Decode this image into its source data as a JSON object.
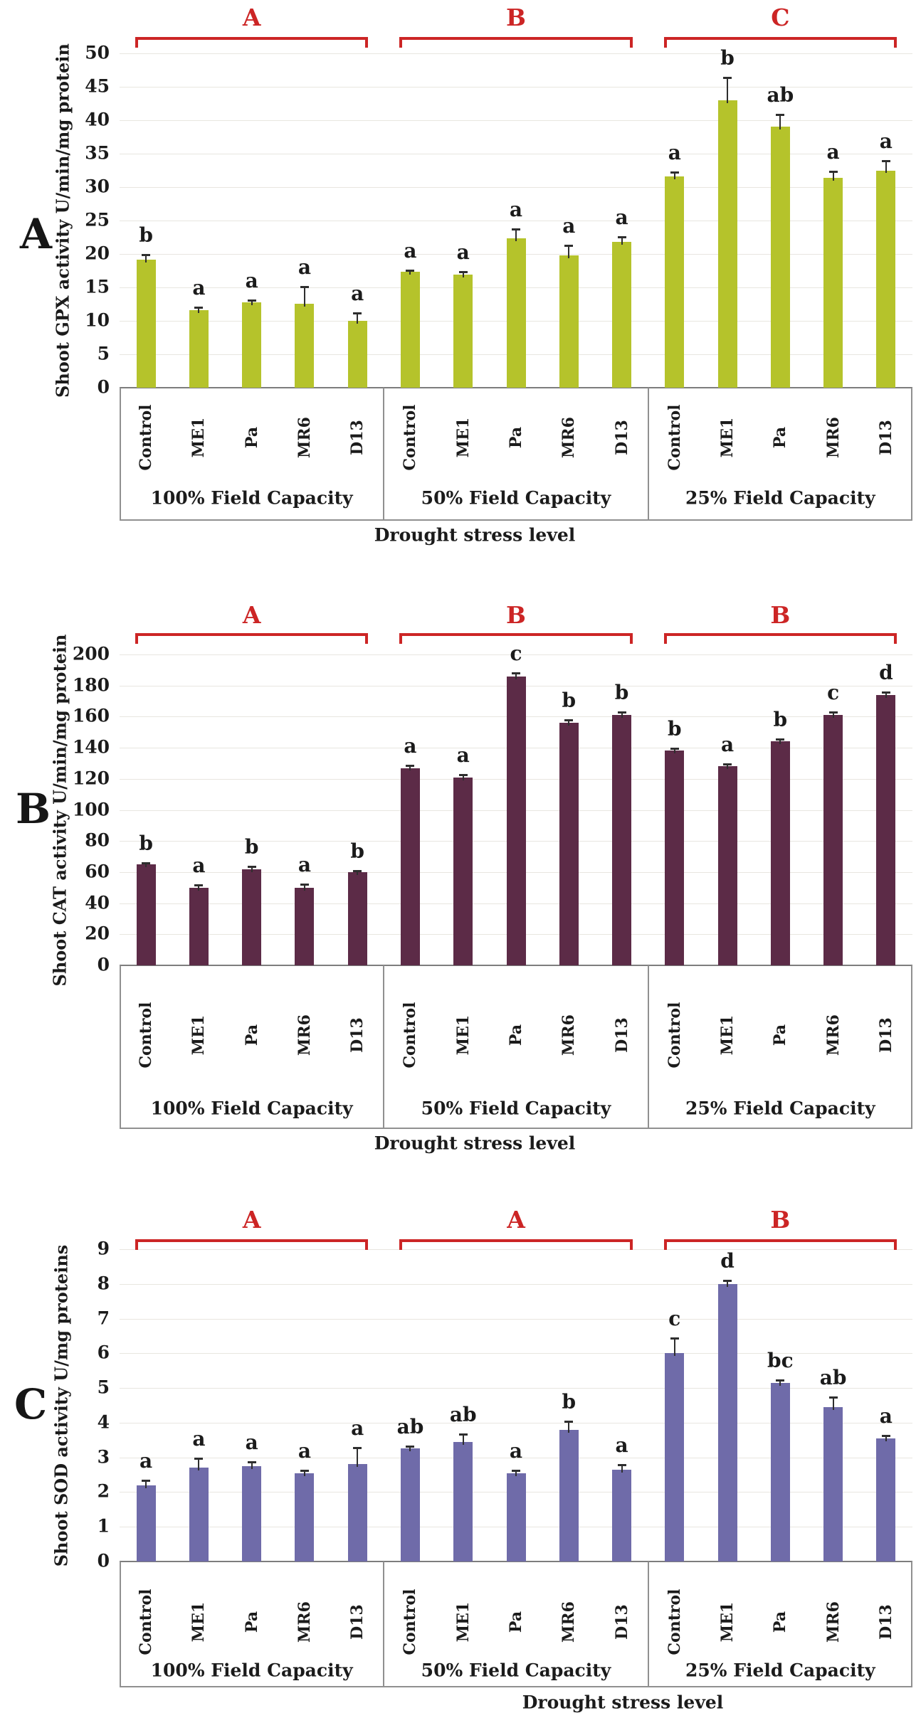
{
  "colors": {
    "bracket_red": "#cc2525",
    "error_bar": "#2e2e2e",
    "text": "#1b1b1b"
  },
  "x_axis_title": "Drought stress level",
  "treatments": [
    "Control",
    "ME1",
    "Pa",
    "MR6",
    "D13"
  ],
  "chart_data": [
    {
      "type": "bar",
      "panel_letter": "A",
      "ylabel": "Shoot GPX activity U/min/mg protein",
      "xlabel": "Drought stress level",
      "ylim": [
        0,
        50
      ],
      "ytick_step": 5,
      "bar_color": "#b5c32b",
      "categories": [
        "Control",
        "ME1",
        "Pa",
        "MR6",
        "D13"
      ],
      "groups": [
        {
          "label": "100% Field Capacity",
          "bracket_letter": "A",
          "values": [
            19.2,
            11.6,
            12.8,
            12.6,
            10.0
          ],
          "errors": [
            0.8,
            0.5,
            0.4,
            2.6,
            1.3
          ],
          "sig_letters": [
            "b",
            "a",
            "a",
            "a",
            "a"
          ]
        },
        {
          "label": "50% Field Capacity",
          "bracket_letter": "B",
          "values": [
            17.3,
            16.9,
            22.3,
            19.8,
            21.8
          ],
          "errors": [
            0.4,
            0.5,
            1.5,
            1.6,
            0.9
          ],
          "sig_letters": [
            "a",
            "a",
            "a",
            "a",
            "a"
          ]
        },
        {
          "label": "25% Field Capacity",
          "bracket_letter": "C",
          "values": [
            31.6,
            43.0,
            39.0,
            31.4,
            32.5
          ],
          "errors": [
            0.7,
            3.5,
            2.0,
            1.0,
            1.5
          ],
          "sig_letters": [
            "a",
            "b",
            "ab",
            "a",
            "a"
          ]
        }
      ]
    },
    {
      "type": "bar",
      "panel_letter": "B",
      "ylabel": "Shoot CAT activity U/min/mg protein",
      "xlabel": "Drought stress level",
      "ylim": [
        0,
        200
      ],
      "ytick_step": 20,
      "bar_color": "#5c2b47",
      "categories": [
        "Control",
        "ME1",
        "Pa",
        "MR6",
        "D13"
      ],
      "groups": [
        {
          "label": "100% Field Capacity",
          "bracket_letter": "A",
          "values": [
            65,
            50,
            62,
            50,
            60
          ],
          "errors": [
            1.5,
            2.0,
            2.0,
            2.5,
            1.5
          ],
          "sig_letters": [
            "b",
            "a",
            "b",
            "a",
            "b"
          ]
        },
        {
          "label": "50% Field Capacity",
          "bracket_letter": "B",
          "values": [
            127,
            121,
            186,
            156,
            161
          ],
          "errors": [
            2.0,
            2.0,
            2.5,
            2.5,
            2.5
          ],
          "sig_letters": [
            "a",
            "a",
            "c",
            "b",
            "b"
          ]
        },
        {
          "label": "25% Field Capacity",
          "bracket_letter": "B",
          "values": [
            138,
            128,
            144,
            161,
            174
          ],
          "errors": [
            2.0,
            2.0,
            2.0,
            2.5,
            2.0
          ],
          "sig_letters": [
            "b",
            "a",
            "b",
            "c",
            "d"
          ]
        }
      ]
    },
    {
      "type": "bar",
      "panel_letter": "C",
      "ylabel": "Shoot SOD activity U/mg proteins",
      "xlabel": "Drought stress level",
      "ylim": [
        0,
        9
      ],
      "ytick_step": 1,
      "bar_color": "#6f6ba9",
      "categories": [
        "Control",
        "ME1",
        "Pa",
        "MR6",
        "D13"
      ],
      "groups": [
        {
          "label": "100% Field Capacity",
          "bracket_letter": "A",
          "values": [
            2.2,
            2.7,
            2.75,
            2.55,
            2.8
          ],
          "errors": [
            0.15,
            0.3,
            0.15,
            0.1,
            0.5
          ],
          "sig_letters": [
            "a",
            "a",
            "a",
            "a",
            "a"
          ]
        },
        {
          "label": "50% Field Capacity",
          "bracket_letter": "A",
          "values": [
            3.25,
            3.45,
            2.55,
            3.8,
            2.65
          ],
          "errors": [
            0.1,
            0.25,
            0.1,
            0.25,
            0.15
          ],
          "sig_letters": [
            "ab",
            "ab",
            "a",
            "b",
            "a"
          ]
        },
        {
          "label": "25% Field Capacity",
          "bracket_letter": "B",
          "values": [
            6.0,
            8.0,
            5.15,
            4.45,
            3.55
          ],
          "errors": [
            0.45,
            0.12,
            0.1,
            0.3,
            0.1
          ],
          "sig_letters": [
            "c",
            "d",
            "bc",
            "ab",
            "a"
          ]
        }
      ]
    }
  ]
}
